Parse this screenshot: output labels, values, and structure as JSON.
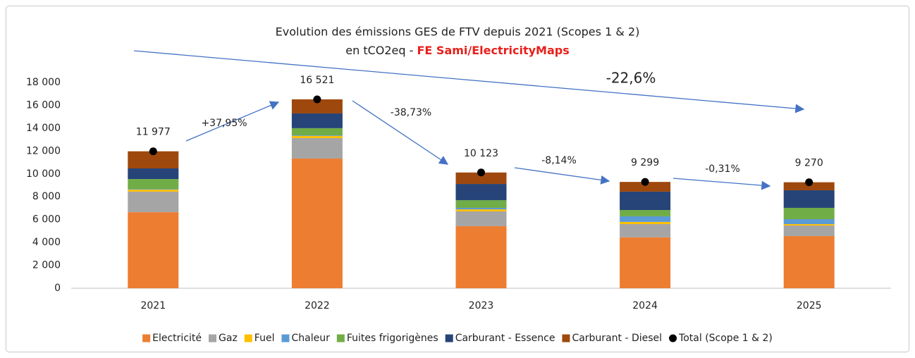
{
  "chart_data": {
    "type": "stacked_bar",
    "title": "Evolution des émissions GES de FTV depuis 2021 (Scopes 1 & 2)",
    "subtitle": {
      "text": "en tCO2eq - ",
      "highlight": "FE Sami/ElectricityMaps",
      "highlight_color": "#e8201b"
    },
    "categories": [
      "2021",
      "2022",
      "2023",
      "2024",
      "2025"
    ],
    "series": [
      {
        "name": "Electricité",
        "color": "#ed7d31",
        "values": [
          6650,
          11340,
          5430,
          4450,
          4560
        ]
      },
      {
        "name": "Gaz",
        "color": "#a5a5a5",
        "values": [
          1800,
          1790,
          1290,
          1160,
          930
        ]
      },
      {
        "name": "Fuel",
        "color": "#ffc000",
        "values": [
          180,
          190,
          180,
          190,
          120
        ]
      },
      {
        "name": "Chaleur",
        "color": "#5b9bd5",
        "values": [
          50,
          50,
          130,
          490,
          430
        ]
      },
      {
        "name": "Fuites frigorigènes",
        "color": "#70ad47",
        "values": [
          870,
          630,
          670,
          550,
          990
        ]
      },
      {
        "name": "Carburant - Essence",
        "color": "#264478",
        "values": [
          930,
          1290,
          1420,
          1610,
          1540
        ]
      },
      {
        "name": "Carburant - Diesel",
        "color": "#9e480e",
        "values": [
          1497,
          1231,
          1003,
          849,
          700
        ]
      }
    ],
    "total": {
      "name": "Total (Scope 1 & 2)",
      "color": "#000000",
      "values": [
        11977,
        16521,
        10123,
        9299,
        9270
      ],
      "value_labels": [
        "11 977",
        "16 521",
        "10 123",
        "9 299",
        "9 270"
      ]
    },
    "annotations": [
      "+37,95%",
      "-38,73%",
      "-8,14%",
      "-0,31%",
      "-22,6%"
    ],
    "ylim": [
      0,
      18000
    ],
    "yticks": [
      0,
      {
        "value": 2000,
        "label": "2 000"
      },
      {
        "value": 4000,
        "label": "4 000"
      },
      {
        "value": 6000,
        "label": "6 000"
      },
      {
        "value": 8000,
        "label": "8 000"
      },
      {
        "value": 10000,
        "label": "10 000"
      },
      {
        "value": 12000,
        "label": "12 000"
      },
      {
        "value": 14000,
        "label": "14 000"
      },
      {
        "value": 16000,
        "label": "16 000"
      },
      {
        "value": 18000,
        "label": "18 000"
      }
    ],
    "grid": false,
    "legend": "bottom"
  }
}
